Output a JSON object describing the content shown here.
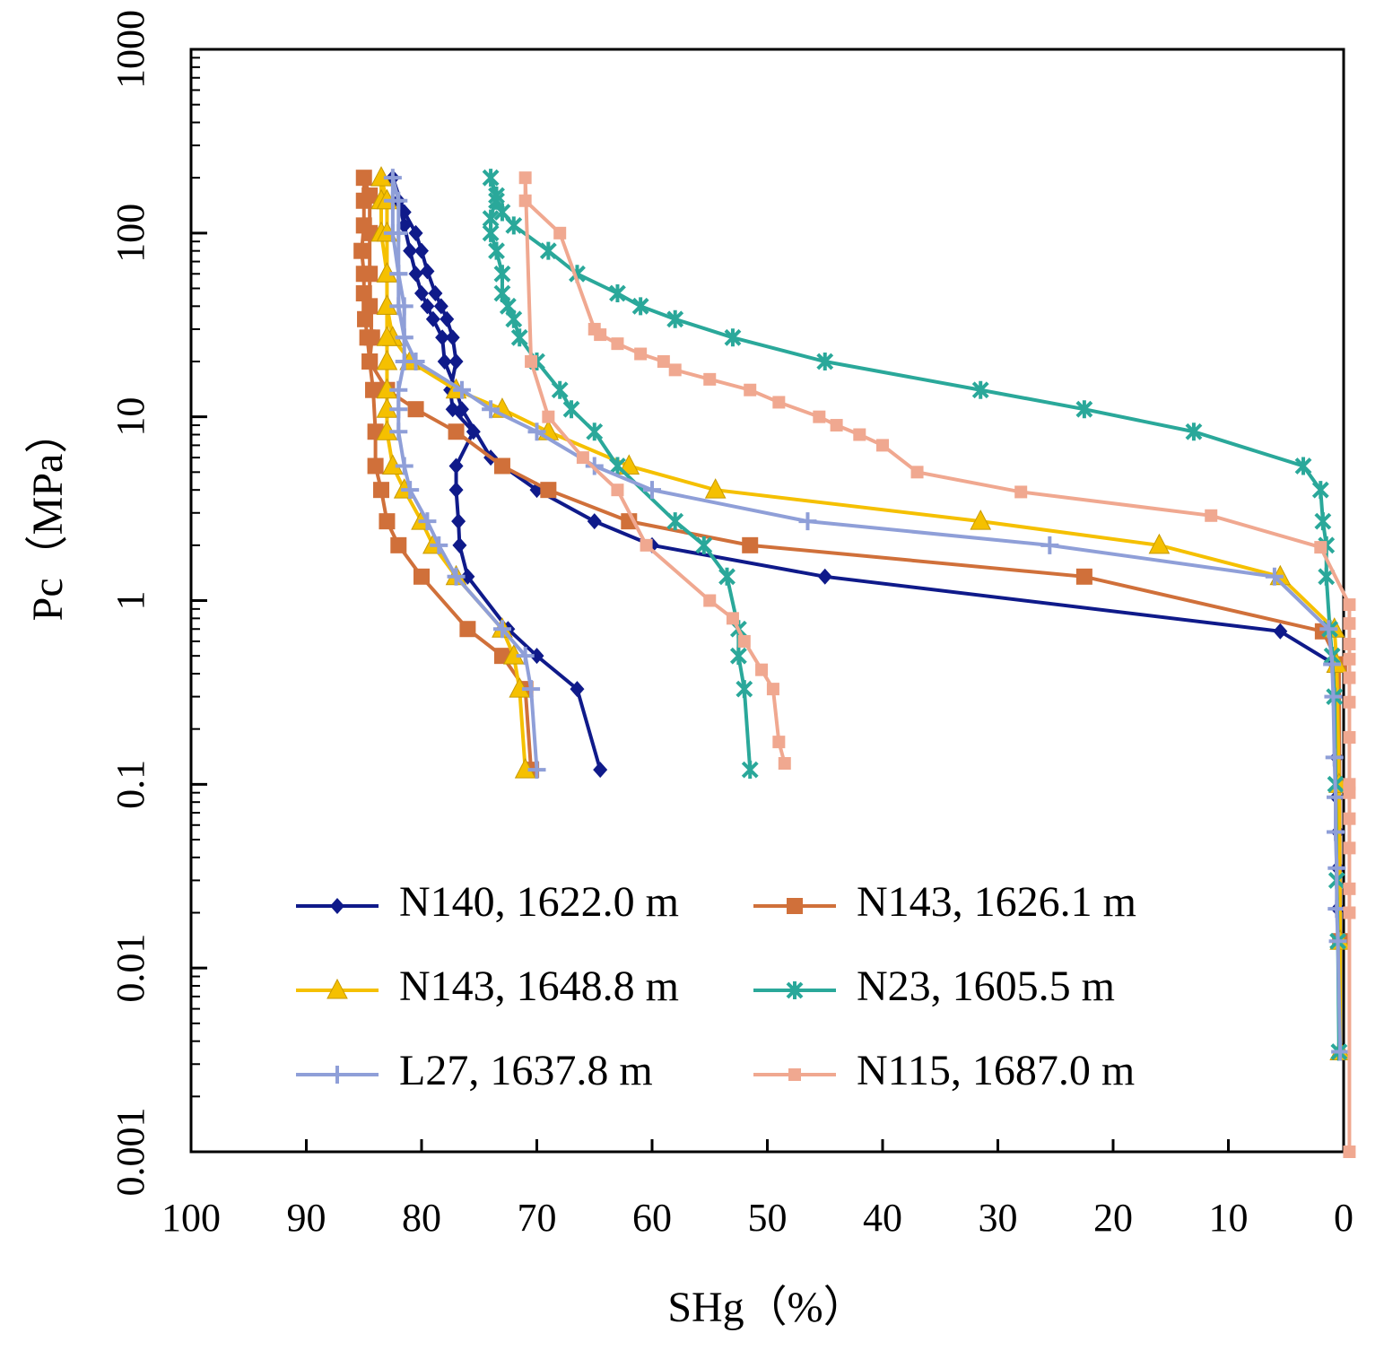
{
  "chart_data": {
    "type": "line",
    "x_label": "SHg（%）",
    "y_label": "Pc（MPa）",
    "xlim": [
      100,
      0
    ],
    "xticks": [
      100,
      90,
      80,
      70,
      60,
      50,
      40,
      30,
      20,
      10,
      0
    ],
    "ylim": [
      0.001,
      1000
    ],
    "yticks": [
      0.001,
      0.01,
      0.1,
      1,
      10,
      100,
      1000
    ],
    "log_y": true,
    "series": [
      {
        "name": "N140, 1622.0 m",
        "color": "#0f1a8a",
        "marker": "diamond",
        "x": [
          0.3,
          0.4,
          0.5,
          0.5,
          0.5,
          0.6,
          0.6,
          0.7,
          0.8,
          5.5,
          45,
          60,
          65,
          70,
          74,
          76.5,
          77,
          78,
          78.2,
          79,
          79.5,
          80,
          80.5,
          81,
          81.5,
          82,
          82.5,
          81.5,
          80.5,
          80,
          79.5,
          78.8,
          78.3,
          77.8,
          77.3,
          77,
          77.5,
          77.3,
          75.5,
          77,
          77,
          76.8,
          76.7,
          76,
          72.5,
          70,
          66.5,
          64.5
        ],
        "values": [
          0.0035,
          0.014,
          0.021,
          0.035,
          0.055,
          0.085,
          0.14,
          0.3,
          0.45,
          0.68,
          1.35,
          2,
          2.7,
          4,
          6,
          11,
          14,
          20,
          27,
          34,
          40,
          47,
          60,
          80,
          110,
          150,
          200,
          130,
          100,
          80,
          62,
          47,
          40,
          34,
          27,
          20,
          14,
          11,
          8.3,
          5.4,
          4,
          2.7,
          2,
          1.35,
          0.7,
          0.5,
          0.33,
          0.12
        ]
      },
      {
        "name": "N143, 1626.1 m",
        "color": "#d0703a",
        "marker": "square",
        "x": [
          0.3,
          0.4,
          1.8,
          22.5,
          51.5,
          62,
          69,
          73,
          77,
          80.5,
          83,
          84.5,
          84.7,
          84.9,
          85,
          85,
          85.2,
          85,
          85,
          85,
          84.5,
          84.5,
          84.5,
          84.5,
          84.3,
          84.5,
          84.2,
          84,
          84,
          83.5,
          83,
          82,
          80,
          76,
          73,
          71,
          70.5
        ],
        "values": [
          0.014,
          0.45,
          0.68,
          1.35,
          2,
          2.7,
          4,
          5.4,
          8.3,
          11,
          14,
          20,
          27,
          34,
          47,
          60,
          80,
          110,
          150,
          200,
          160,
          100,
          60,
          40,
          27,
          20,
          14,
          8.3,
          5.4,
          4,
          2.7,
          2,
          1.35,
          0.7,
          0.5,
          0.33,
          0.12
        ]
      },
      {
        "name": "N143, 1648.8 m",
        "color": "#f5c000",
        "marker": "triangle",
        "x": [
          0.3,
          0.3,
          0.4,
          0.6,
          0.8,
          5.5,
          16,
          31.5,
          54.5,
          62,
          69,
          73,
          77,
          81,
          82.5,
          83,
          83,
          83.5,
          83.5,
          83.5,
          83,
          83,
          83,
          83,
          83,
          83,
          83,
          83,
          83,
          82.5,
          81.5,
          80,
          79,
          77,
          73,
          72,
          71.5,
          71
        ],
        "values": [
          0.0035,
          0.014,
          0.1,
          0.45,
          0.7,
          1.35,
          2,
          2.7,
          4,
          5.4,
          8.3,
          11,
          14,
          20,
          27,
          40,
          60,
          100,
          150,
          200,
          150,
          100,
          60,
          40,
          27,
          20,
          14,
          11,
          8.3,
          5.4,
          4,
          2.7,
          2,
          1.35,
          0.7,
          0.5,
          0.33,
          0.12
        ]
      },
      {
        "name": "N23, 1605.5 m",
        "color": "#2aa89a",
        "marker": "cross",
        "x": [
          0.4,
          0.5,
          0.6,
          0.7,
          0.8,
          1,
          1.2,
          1.5,
          1.5,
          1.8,
          2,
          3.5,
          13,
          22.5,
          31.5,
          45,
          53,
          58,
          61,
          63,
          66.5,
          69,
          72,
          73,
          73.5,
          74,
          73.5,
          74,
          74,
          73.5,
          73,
          73,
          72.5,
          72,
          71.5,
          70,
          68,
          67,
          65,
          63,
          58,
          55.5,
          53.5,
          52.5,
          52.5,
          52,
          51.5
        ],
        "values": [
          0.0035,
          0.014,
          0.03,
          0.1,
          0.3,
          0.5,
          0.7,
          1.35,
          2,
          2.7,
          4,
          5.4,
          8.3,
          11,
          14,
          20,
          27,
          34,
          40,
          47,
          60,
          80,
          110,
          130,
          150,
          200,
          160,
          120,
          100,
          80,
          60,
          47,
          40,
          34,
          27,
          20,
          14,
          11,
          8.3,
          5.4,
          2.7,
          2,
          1.35,
          0.7,
          0.5,
          0.33,
          0.12
        ]
      },
      {
        "name": "L27, 1637.8 m",
        "color": "#8f9fd8",
        "marker": "plus",
        "x": [
          0.3,
          0.5,
          0.6,
          0.6,
          0.7,
          0.7,
          0.8,
          0.9,
          1,
          1.3,
          6,
          25.5,
          46.5,
          60,
          65,
          70,
          74,
          76.5,
          80.5,
          81.5,
          82,
          82,
          82.5,
          82.5,
          82.5,
          82,
          82,
          82,
          81.5,
          81.5,
          81.5,
          82,
          82,
          82,
          81.5,
          81,
          79.5,
          78.5,
          77,
          73,
          71,
          70.5,
          70
        ],
        "values": [
          0.0035,
          0.014,
          0.021,
          0.035,
          0.055,
          0.085,
          0.14,
          0.3,
          0.45,
          0.7,
          1.35,
          2,
          2.7,
          4,
          5.4,
          8.3,
          11,
          14,
          20,
          27,
          40,
          60,
          100,
          150,
          200,
          150,
          100,
          60,
          40,
          27,
          20,
          14,
          11,
          8.3,
          5.4,
          4,
          2.7,
          2,
          1.35,
          0.7,
          0.5,
          0.33,
          0.12
        ]
      },
      {
        "name": "N115, 1687.0 m",
        "color": "#f0a890",
        "marker": "smallsquare",
        "x": [
          -0.5,
          -0.5,
          -0.5,
          -0.5,
          -0.5,
          -0.5,
          -0.5,
          -0.5,
          -0.5,
          -0.5,
          -0.5,
          -0.5,
          -0.5,
          -0.5,
          2,
          11.5,
          28,
          37,
          40,
          42,
          44,
          45.5,
          49,
          51.5,
          55,
          58,
          59,
          61,
          63,
          64.5,
          65,
          68,
          71,
          71,
          70.5,
          69,
          66,
          63,
          60.5,
          55,
          53,
          52,
          50.5,
          49.5,
          49,
          48.5
        ],
        "values": [
          0.001,
          0.02,
          0.027,
          0.045,
          0.065,
          0.09,
          0.1,
          0.18,
          0.28,
          0.38,
          0.48,
          0.58,
          0.75,
          0.95,
          1.95,
          2.9,
          3.9,
          5,
          7,
          8,
          9,
          10,
          12,
          14,
          16,
          18,
          20,
          22,
          25,
          28,
          30,
          100,
          150,
          200,
          20,
          10,
          6,
          4,
          2,
          1,
          0.8,
          0.6,
          0.42,
          0.33,
          0.17,
          0.13
        ]
      }
    ]
  }
}
